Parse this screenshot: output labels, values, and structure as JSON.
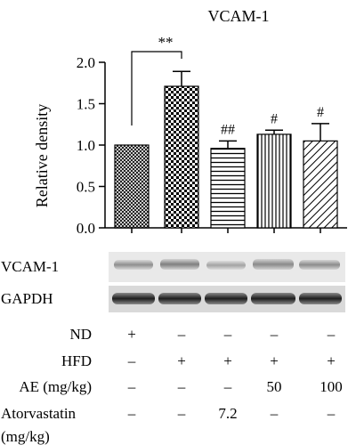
{
  "chart_data": {
    "type": "bar",
    "title": "VCAM-1",
    "ylabel": "Relative density",
    "xlabel": "",
    "ylim": [
      0,
      2.0
    ],
    "yticks": [
      "0.0",
      "0.5",
      "1.0",
      "1.5",
      "2.0"
    ],
    "ytick_values": [
      0,
      0.5,
      1.0,
      1.5,
      2.0
    ],
    "categories": [
      "ND",
      "HFD",
      "HFD + Atorvastatin 7.2",
      "HFD + AE 50",
      "HFD + AE 100"
    ],
    "values": [
      1.0,
      1.71,
      0.96,
      1.13,
      1.05
    ],
    "errors": [
      0,
      0.18,
      0.09,
      0.05,
      0.21
    ],
    "patterns": [
      "fine-crosshatch",
      "checkerboard",
      "horizontal-lines",
      "vertical-lines",
      "diagonal-lines"
    ],
    "annotations": [
      "",
      "",
      "##",
      "#",
      "#"
    ],
    "bracket": {
      "from": 0,
      "to": 1,
      "label": "**"
    },
    "grid": false
  },
  "blot": {
    "rows": [
      {
        "label": "VCAM-1"
      },
      {
        "label": "GAPDH"
      }
    ]
  },
  "conditions": [
    {
      "label": "ND",
      "values": [
        "+",
        "–",
        "–",
        "–",
        "–"
      ]
    },
    {
      "label": "HFD",
      "values": [
        "–",
        "+",
        "+",
        "+",
        "+"
      ]
    },
    {
      "label": "AE (mg/kg)",
      "values": [
        "–",
        "–",
        "–",
        "50",
        "100"
      ]
    },
    {
      "label": "Atorvastatin",
      "label2": "(mg/kg)",
      "values": [
        "–",
        "–",
        "7.2",
        "–",
        "–"
      ]
    }
  ]
}
